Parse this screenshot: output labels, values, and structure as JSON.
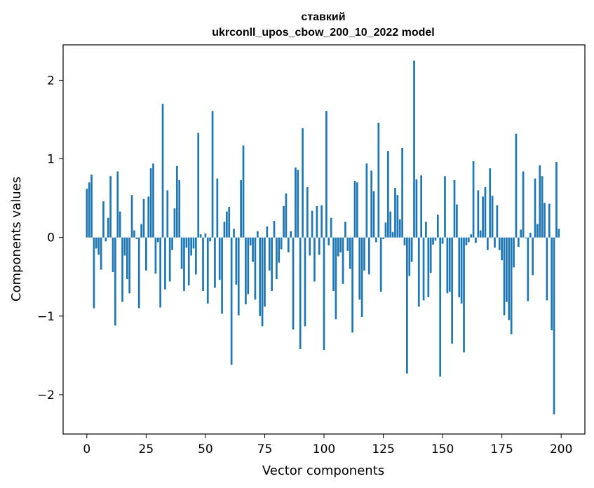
{
  "chart_data": {
    "type": "bar",
    "title": "ставкий",
    "subtitle": "ukrconll_upos_cbow_200_10_2022 model",
    "xlabel": "Vector components",
    "ylabel": "Components values",
    "xlim": [
      -10,
      210
    ],
    "ylim": [
      -2.5,
      2.45
    ],
    "xticks": [
      0,
      25,
      50,
      75,
      100,
      125,
      150,
      175,
      200
    ],
    "yticks": [
      -2,
      -1,
      0,
      1,
      2
    ],
    "ytick_labels": [
      "−2",
      "−1",
      "0",
      "1",
      "2"
    ],
    "grid": false,
    "bar_color": "#1f77b4",
    "x": [
      0,
      1,
      2,
      3,
      4,
      5,
      6,
      7,
      8,
      9,
      10,
      11,
      12,
      13,
      14,
      15,
      16,
      17,
      18,
      19,
      20,
      21,
      22,
      23,
      24,
      25,
      26,
      27,
      28,
      29,
      30,
      31,
      32,
      33,
      34,
      35,
      36,
      37,
      38,
      39,
      40,
      41,
      42,
      43,
      44,
      45,
      46,
      47,
      48,
      49,
      50,
      51,
      52,
      53,
      54,
      55,
      56,
      57,
      58,
      59,
      60,
      61,
      62,
      63,
      64,
      65,
      66,
      67,
      68,
      69,
      70,
      71,
      72,
      73,
      74,
      75,
      76,
      77,
      78,
      79,
      80,
      81,
      82,
      83,
      84,
      85,
      86,
      87,
      88,
      89,
      90,
      91,
      92,
      93,
      94,
      95,
      96,
      97,
      98,
      99,
      100,
      101,
      102,
      103,
      104,
      105,
      106,
      107,
      108,
      109,
      110,
      111,
      112,
      113,
      114,
      115,
      116,
      117,
      118,
      119,
      120,
      121,
      122,
      123,
      124,
      125,
      126,
      127,
      128,
      129,
      130,
      131,
      132,
      133,
      134,
      135,
      136,
      137,
      138,
      139,
      140,
      141,
      142,
      143,
      144,
      145,
      146,
      147,
      148,
      149,
      150,
      151,
      152,
      153,
      154,
      155,
      156,
      157,
      158,
      159,
      160,
      161,
      162,
      163,
      164,
      165,
      166,
      167,
      168,
      169,
      170,
      171,
      172,
      173,
      174,
      175,
      176,
      177,
      178,
      179,
      180,
      181,
      182,
      183,
      184,
      185,
      186,
      187,
      188,
      189,
      190,
      191,
      192,
      193,
      194,
      195,
      196,
      197,
      198,
      199
    ],
    "values": [
      0.62,
      0.7,
      0.8,
      -0.9,
      -0.14,
      -0.22,
      -0.41,
      0.46,
      -0.05,
      0.25,
      0.78,
      -0.44,
      -1.12,
      0.84,
      0.33,
      -0.82,
      -0.23,
      -0.53,
      -0.71,
      0.54,
      0.09,
      -0.02,
      -0.9,
      0.17,
      0.49,
      -0.42,
      0.52,
      0.88,
      0.94,
      -0.46,
      -0.06,
      -0.89,
      1.7,
      -0.66,
      0.6,
      -0.56,
      -0.16,
      0.37,
      0.91,
      0.73,
      -0.4,
      -0.68,
      -0.13,
      -0.61,
      -0.23,
      -0.14,
      -0.47,
      1.33,
      0.04,
      -0.68,
      0.05,
      -0.84,
      -0.05,
      1.61,
      -0.64,
      0.75,
      -0.54,
      -0.97,
      0.2,
      0.33,
      0.39,
      -1.62,
      0.11,
      -0.6,
      -0.99,
      0.73,
      1.17,
      -0.85,
      -0.72,
      -0.1,
      -0.31,
      -0.79,
      0.08,
      -1.0,
      -1.13,
      -0.88,
      0.14,
      -0.42,
      -0.68,
      0.21,
      -0.53,
      -0.32,
      -0.15,
      0.4,
      0.56,
      -0.19,
      0.08,
      -1.17,
      0.89,
      0.86,
      -1.42,
      1.39,
      -1.13,
      0.64,
      -0.23,
      0.34,
      -0.56,
      0.4,
      -0.22,
      0.41,
      -1.43,
      1.61,
      -0.1,
      0.25,
      -0.68,
      -1.04,
      -0.24,
      -0.19,
      -0.59,
      0.2,
      -0.17,
      -0.4,
      -1.21,
      0.72,
      0.7,
      -0.79,
      -1.01,
      -0.42,
      0.94,
      -0.47,
      0.85,
      0.59,
      -0.06,
      1.46,
      -0.69,
      -0.02,
      0.19,
      1.1,
      0.33,
      0.07,
      0.63,
      0.54,
      0.23,
      1.14,
      -0.1,
      -1.73,
      -0.49,
      -0.31,
      2.25,
      0.74,
      -0.88,
      0.79,
      -0.8,
      0.2,
      -0.76,
      -0.45,
      -0.09,
      -0.04,
      0.29,
      -1.77,
      -0.08,
      0.78,
      -0.71,
      -0.69,
      -1.35,
      0.73,
      0.42,
      -0.76,
      -0.84,
      -1.46,
      -0.1,
      -0.06,
      0.04,
      0.97,
      -0.07,
      0.6,
      0.09,
      0.52,
      0.64,
      -0.16,
      0.88,
      0.53,
      -0.13,
      0.41,
      -0.16,
      -0.29,
      -0.99,
      -0.82,
      -1.05,
      -1.23,
      -0.38,
      1.32,
      -0.12,
      0.1,
      0.84,
      -0.01,
      -0.81,
      0.06,
      -0.48,
      0.75,
      0.17,
      0.92,
      0.78,
      0.44,
      -0.8,
      0.43,
      -1.18,
      -2.25,
      0.96,
      0.11
    ]
  }
}
